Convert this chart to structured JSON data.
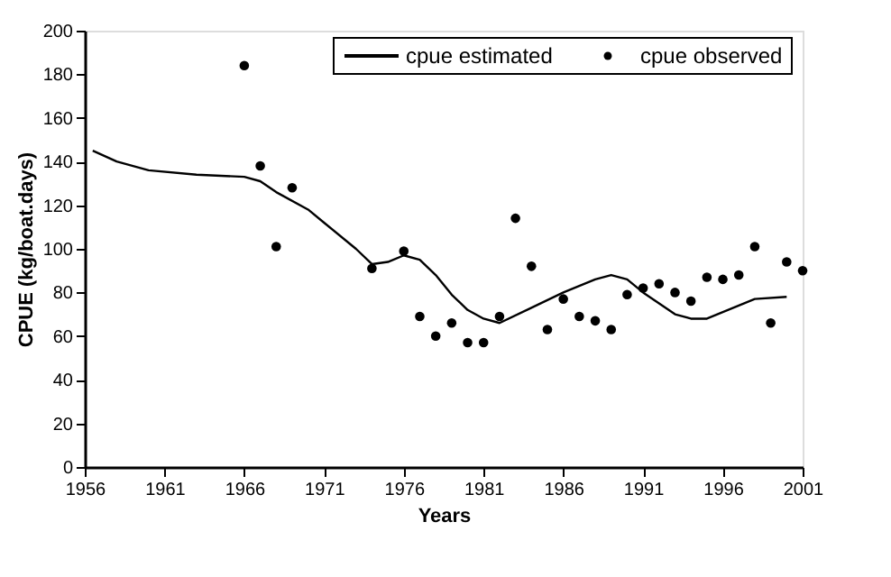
{
  "chart_data": {
    "type": "line",
    "xlabel": "Years",
    "ylabel": "CPUE (kg/boat.days)",
    "xlim": [
      1956,
      2001
    ],
    "xticks": [
      1956,
      1961,
      1966,
      1971,
      1976,
      1981,
      1986,
      1991,
      1996,
      2001
    ],
    "ylim": [
      0,
      200
    ],
    "yticks": [
      0,
      20,
      40,
      60,
      80,
      100,
      120,
      140,
      160,
      180,
      200
    ],
    "grid": false,
    "legend": "top right",
    "series": [
      {
        "name": "cpue estimated",
        "color": "#000000",
        "marker": "none",
        "line_style": "solid",
        "x": [
          1956.5,
          1958,
          1960,
          1963,
          1966,
          1967,
          1968,
          1970,
          1971,
          1973,
          1974,
          1975,
          1976,
          1977,
          1978,
          1979,
          1980,
          1981,
          1982,
          1984,
          1986,
          1988,
          1989,
          1990,
          1991,
          1992,
          1993,
          1994,
          1995,
          1996,
          1997,
          1998,
          2000
        ],
        "values": [
          145,
          140,
          136,
          134,
          133,
          131,
          126,
          118,
          112,
          100,
          93,
          94,
          97,
          95,
          88,
          79,
          72,
          68,
          66,
          73,
          80,
          86,
          88,
          86,
          80,
          75,
          70,
          68,
          68,
          71,
          74,
          77,
          78
        ]
      },
      {
        "name": "cpue observed",
        "type": "scatter",
        "color": "#000000",
        "marker": "circle",
        "x": [
          1966,
          1967,
          1968,
          1969,
          1974,
          1976,
          1977,
          1978,
          1979,
          1980,
          1981,
          1982,
          1983,
          1984,
          1985,
          1986,
          1987,
          1988,
          1989,
          1990,
          1991,
          1992,
          1993,
          1994,
          1995,
          1996,
          1997,
          1998,
          1999,
          2000,
          2001
        ],
        "values": [
          184,
          138,
          101,
          128,
          91,
          99,
          69,
          60,
          66,
          57,
          57,
          69,
          114,
          92,
          63,
          77,
          69,
          67,
          63,
          79,
          82,
          84,
          80,
          76,
          87,
          86,
          88,
          101,
          66,
          94,
          90
        ]
      }
    ]
  }
}
